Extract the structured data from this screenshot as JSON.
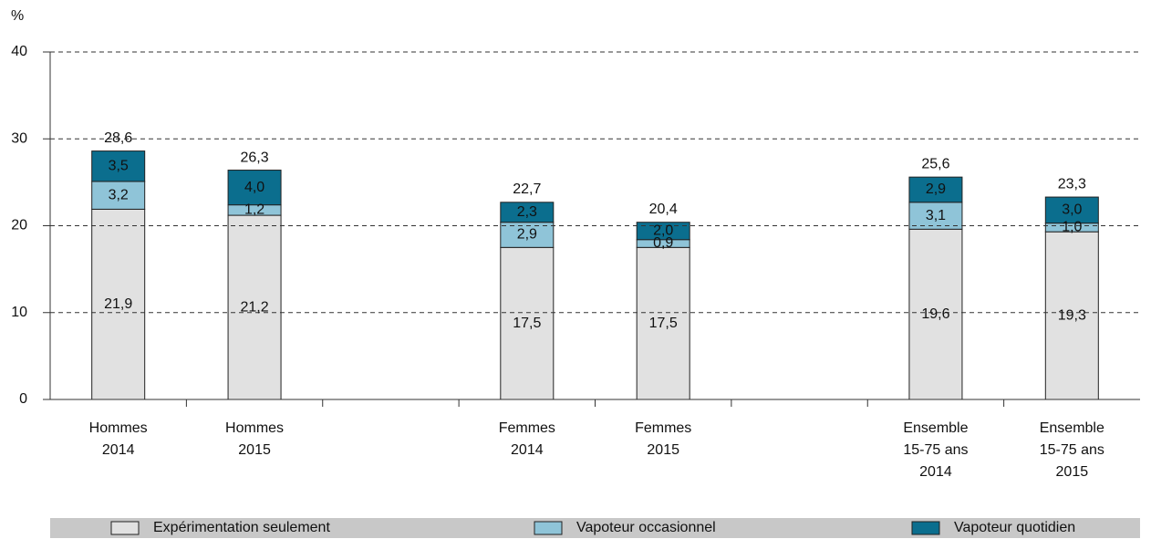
{
  "chart_data": {
    "type": "stacked_bar",
    "y_axis_label": "%",
    "categories": [
      [
        "Hommes",
        "2014"
      ],
      [
        "Hommes",
        "2015"
      ],
      null,
      [
        "Femmes",
        "2014"
      ],
      [
        "Femmes",
        "2015"
      ],
      null,
      [
        "Ensemble",
        "15-75 ans",
        "2014"
      ],
      [
        "Ensemble",
        "15-75 ans",
        "2015"
      ]
    ],
    "series": [
      {
        "name": "Expérimentation seulement",
        "color": "#e1e1e1",
        "values": [
          21.9,
          21.2,
          null,
          17.5,
          17.5,
          null,
          19.6,
          19.3
        ],
        "value_labels": [
          "21,9",
          "21,2",
          null,
          "17,5",
          "17,5",
          null,
          "19,6",
          "19,3"
        ]
      },
      {
        "name": "Vapoteur occasionnel",
        "color": "#8fc4d8",
        "values": [
          3.2,
          1.2,
          null,
          2.9,
          0.9,
          null,
          3.1,
          1.0
        ],
        "value_labels": [
          "3,2",
          "1,2",
          null,
          "2,9",
          "0,9",
          null,
          "3,1",
          "1,0"
        ]
      },
      {
        "name": "Vapoteur quotidien",
        "color": "#0b6e8e",
        "values": [
          3.5,
          4.0,
          null,
          2.3,
          2.0,
          null,
          2.9,
          3.0
        ],
        "value_labels": [
          "3,5",
          "4,0",
          null,
          "2,3",
          "2,0",
          null,
          "2,9",
          "3,0"
        ]
      }
    ],
    "totals": [
      28.6,
      26.3,
      null,
      22.7,
      20.4,
      null,
      25.6,
      23.3
    ],
    "total_labels": [
      "28,6",
      "26,3",
      null,
      "22,7",
      "20,4",
      null,
      "25,6",
      "23,3"
    ],
    "ylim": [
      0,
      40
    ],
    "yticks": [
      0,
      10,
      20,
      30,
      40
    ],
    "grid": true
  }
}
